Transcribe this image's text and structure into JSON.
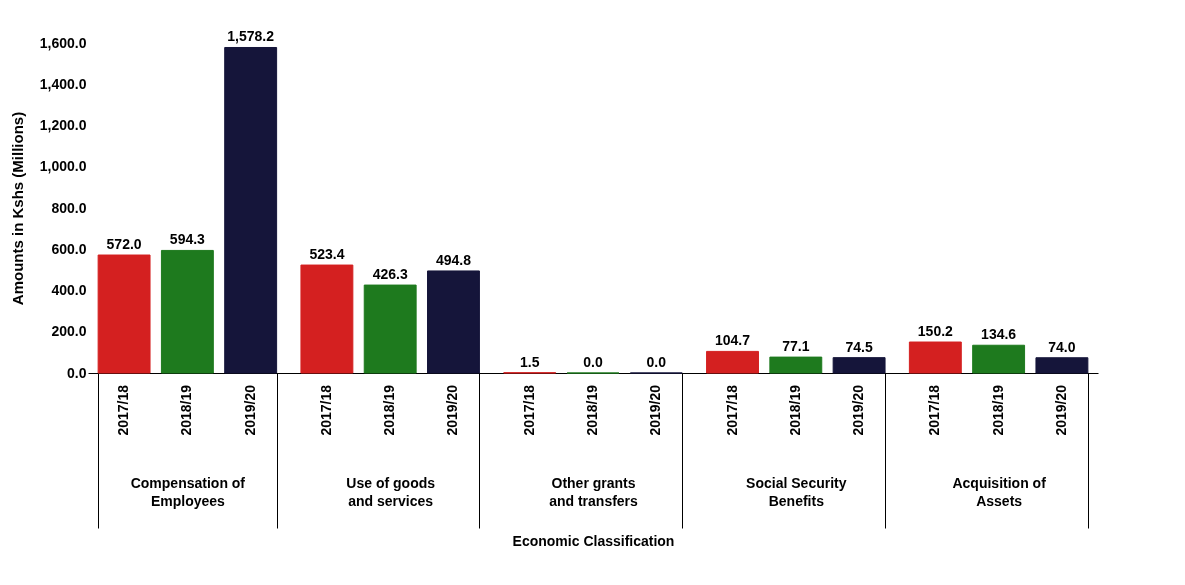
{
  "chart_data": {
    "type": "bar",
    "xlabel": "Economic Classification",
    "ylabel": "Amounts in Kshs (Millions)",
    "categories": [
      "Compensation of Employees",
      "Use of goods and services",
      "Other grants and transfers",
      "Social Security Benefits",
      "Acquisition of Assets"
    ],
    "series": [
      {
        "name": "2017/18",
        "color": "#d42020",
        "values": [
          572.0,
          523.4,
          1.5,
          104.7,
          150.2
        ],
        "value_labels": [
          "572.0",
          "523.4",
          "1.5",
          "104.7",
          "150.2"
        ]
      },
      {
        "name": "2018/19",
        "color": "#1e7a1e",
        "values": [
          594.3,
          426.3,
          0.0,
          77.1,
          134.6
        ],
        "value_labels": [
          "594.3",
          "426.3",
          "0.0",
          "77.1",
          "134.6"
        ]
      },
      {
        "name": "2019/20",
        "color": "#15153a",
        "values": [
          1578.2,
          494.8,
          0.0,
          74.5,
          74.0
        ],
        "value_labels": [
          "1,578.2",
          "494.8",
          "0.0",
          "74.5",
          "74.0"
        ]
      }
    ],
    "ylim": [
      0,
      1600
    ],
    "yticks": [
      {
        "value": 0,
        "label": "0.0"
      },
      {
        "value": 200,
        "label": "200.0"
      },
      {
        "value": 400,
        "label": "400.0"
      },
      {
        "value": 600,
        "label": "600.0"
      },
      {
        "value": 800,
        "label": "800.0"
      },
      {
        "value": 1000,
        "label": "1,000.0"
      },
      {
        "value": 1200,
        "label": "1,200.0"
      },
      {
        "value": 1400,
        "label": "1,400.0"
      },
      {
        "value": 1600,
        "label": "1,600.0"
      }
    ],
    "legend": false,
    "grid": false
  }
}
